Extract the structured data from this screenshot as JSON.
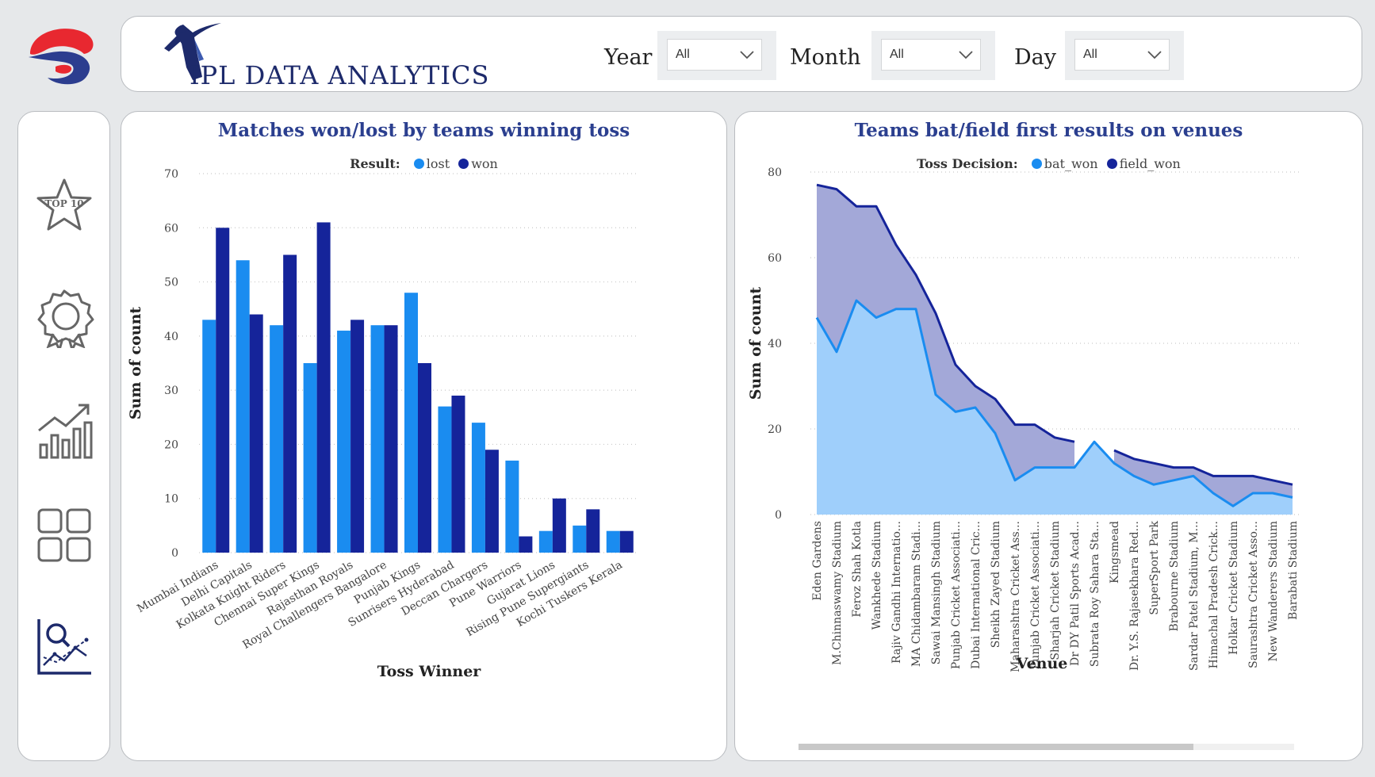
{
  "header": {
    "brand": "IPL DATA ANALYTICS",
    "filters": [
      {
        "label": "Year",
        "value": "All"
      },
      {
        "label": "Month",
        "value": "All"
      },
      {
        "label": "Day",
        "value": "All"
      }
    ]
  },
  "nav": {
    "items": [
      {
        "icon": "top10-star-icon",
        "text": "TOP 10"
      },
      {
        "icon": "badge-gear-icon"
      },
      {
        "icon": "growth-chart-icon"
      },
      {
        "icon": "grid-icon"
      },
      {
        "icon": "analytics-search-icon"
      }
    ]
  },
  "colors": {
    "lost": "#1a8cf0",
    "won": "#15249a",
    "bat_won": "#1a8cf0",
    "field_won": "#15249a",
    "area_field": "#a3a8d8",
    "area_bat": "#9fcffb",
    "title": "#2b3f8f"
  },
  "chart_data": [
    {
      "type": "bar",
      "title": "Matches won/lost by teams winning toss",
      "legend_title": "Result:",
      "legend_position": "top",
      "xlabel": "Toss Winner",
      "ylabel": "Sum of count",
      "ylim": [
        0,
        70
      ],
      "yticks": [
        0,
        10,
        20,
        30,
        40,
        50,
        60,
        70
      ],
      "grid": true,
      "categories": [
        "Mumbai Indians",
        "Delhi Capitals",
        "Kolkata Knight Riders",
        "Chennai Super Kings",
        "Rajasthan Royals",
        "Royal Challengers Bangalore",
        "Punjab Kings",
        "Sunrisers Hyderabad",
        "Deccan Chargers",
        "Pune Warriors",
        "Gujarat Lions",
        "Rising Pune Supergiants",
        "Kochi Tuskers Kerala"
      ],
      "series": [
        {
          "name": "lost",
          "values": [
            43,
            54,
            42,
            35,
            41,
            42,
            48,
            27,
            24,
            17,
            4,
            5,
            4
          ]
        },
        {
          "name": "won",
          "values": [
            60,
            44,
            55,
            61,
            43,
            42,
            35,
            29,
            19,
            3,
            10,
            8,
            4
          ]
        }
      ]
    },
    {
      "type": "area",
      "title": "Teams bat/field first results on venues",
      "legend_title": "Toss Decision:",
      "legend_position": "top",
      "xlabel": "Venue",
      "ylabel": "Sum of count",
      "ylim": [
        0,
        80
      ],
      "yticks": [
        0,
        20,
        40,
        60,
        80
      ],
      "grid": true,
      "stacked": true,
      "categories": [
        "Eden Gardens",
        "M.Chinnaswamy Stadium",
        "Feroz Shah Kotla",
        "Wankhede Stadium",
        "Rajiv Gandhi Internatio...",
        "MA Chidambaram Stadi...",
        "Sawai Mansingh Stadium",
        "Punjab Cricket Associati...",
        "Dubai International Cric...",
        "Sheikh Zayed Stadium",
        "Maharashtra Cricket Ass...",
        "Punjab Cricket Associati...",
        "Sharjah Cricket Stadium",
        "Dr DY Patil Sports Acad...",
        "Subrata Roy Sahara Sta...",
        "Kingsmead",
        "Dr. Y.S. Rajasekhara Red...",
        "SuperSport Park",
        "Brabourne Stadium",
        "Sardar Patel Stadium, M...",
        "Himachal Pradesh Crick...",
        "Holkar Cricket Stadium",
        "Saurashtra Cricket Asso...",
        "New Wanderers Stadium",
        "Barabati Stadium"
      ],
      "series": [
        {
          "name": "bat_won",
          "values": [
            46,
            38,
            50,
            46,
            48,
            48,
            28,
            24,
            25,
            19,
            8,
            11,
            11,
            11,
            17,
            12,
            9,
            7,
            8,
            9,
            5,
            2,
            5,
            5,
            4
          ]
        },
        {
          "name": "field_won",
          "values": [
            31,
            38,
            22,
            26,
            15,
            8,
            19,
            11,
            5,
            8,
            13,
            10,
            7,
            6,
            null,
            3,
            4,
            5,
            3,
            2,
            4,
            7,
            4,
            3,
            3
          ]
        }
      ]
    }
  ]
}
